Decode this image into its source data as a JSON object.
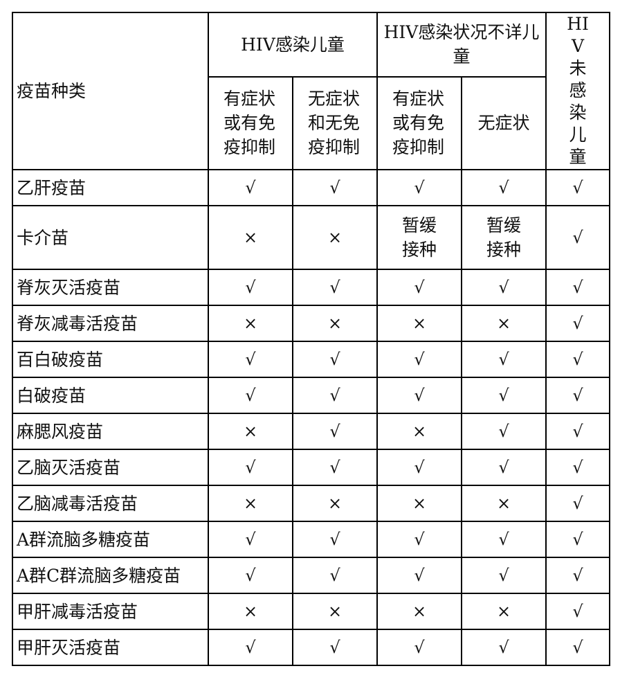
{
  "header": {
    "vaccine_type": "疫苗种类",
    "group_infected": "HIV感染儿童",
    "group_unknown": "HIV感染状况不详儿童",
    "group_uninfected": "HIV未感染儿童",
    "sub_infected_symptomatic": "有症状或有免疫抑制",
    "sub_infected_asymptomatic": "无症状和无免疫抑制",
    "sub_unknown_symptomatic": "有症状或有免疫抑制",
    "sub_unknown_asymptomatic": "无症状"
  },
  "rows": [
    {
      "name": "乙肝疫苗",
      "values": [
        "√",
        "√",
        "√",
        "√",
        "√"
      ]
    },
    {
      "name": "卡介苗",
      "values": [
        "×",
        "×",
        "暂缓接种",
        "暂缓接种",
        "√"
      ]
    },
    {
      "name": "脊灰灭活疫苗",
      "values": [
        "√",
        "√",
        "√",
        "√",
        "√"
      ]
    },
    {
      "name": "脊灰减毒活疫苗",
      "values": [
        "×",
        "×",
        "×",
        "×",
        "√"
      ]
    },
    {
      "name": "百白破疫苗",
      "values": [
        "√",
        "√",
        "√",
        "√",
        "√"
      ]
    },
    {
      "name": "白破疫苗",
      "values": [
        "√",
        "√",
        "√",
        "√",
        "√"
      ]
    },
    {
      "name": "麻腮风疫苗",
      "values": [
        "×",
        "√",
        "×",
        "√",
        "√"
      ]
    },
    {
      "name": "乙脑灭活疫苗",
      "values": [
        "√",
        "√",
        "√",
        "√",
        "√"
      ]
    },
    {
      "name": "乙脑减毒活疫苗",
      "values": [
        "×",
        "×",
        "×",
        "×",
        "√"
      ]
    },
    {
      "name": "A群流脑多糖疫苗",
      "values": [
        "√",
        "√",
        "√",
        "√",
        "√"
      ]
    },
    {
      "name": "A群C群流脑多糖疫苗",
      "values": [
        "√",
        "√",
        "√",
        "√",
        "√"
      ]
    },
    {
      "name": "甲肝减毒活疫苗",
      "values": [
        "×",
        "×",
        "×",
        "×",
        "√"
      ]
    },
    {
      "name": "甲肝灭活疫苗",
      "values": [
        "√",
        "√",
        "√",
        "√",
        "√"
      ]
    }
  ]
}
